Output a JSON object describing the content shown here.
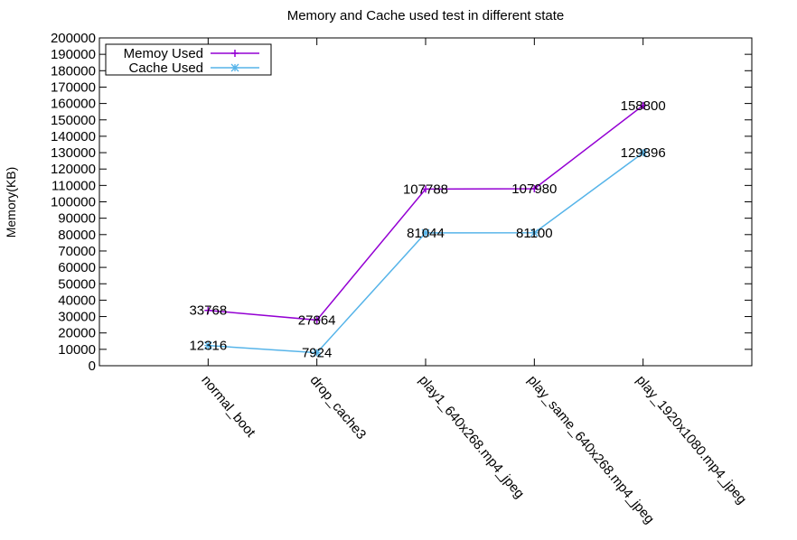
{
  "chart_data": {
    "type": "line",
    "title": "Memory and Cache used test in different state",
    "xlabel": "",
    "ylabel": "Memory(KB)",
    "ylim": [
      0,
      200000
    ],
    "yticks": [
      "0",
      "10000",
      "20000",
      "30000",
      "40000",
      "50000",
      "60000",
      "70000",
      "80000",
      "90000",
      "100000",
      "110000",
      "120000",
      "130000",
      "140000",
      "150000",
      "160000",
      "170000",
      "180000",
      "190000",
      "200000"
    ],
    "categories": [
      "normal_boot",
      "drop_cache3",
      "play1_640x268.mp4_jpeg",
      "play_same_640x268.mp4_jpeg",
      "play_1920x1080.mp4_jpeg"
    ],
    "grid": false,
    "legend_position": "top-left",
    "series": [
      {
        "name": "Memoy Used",
        "values": [
          33768,
          27864,
          107788,
          107980,
          158800
        ],
        "labels": [
          "33768",
          "27864",
          "107788",
          "107980",
          "158800"
        ],
        "color": "#9400d3",
        "marker": "plus"
      },
      {
        "name": "Cache Used",
        "values": [
          12316,
          7924,
          81044,
          81100,
          129896
        ],
        "labels": [
          "12316",
          "7924",
          "81044",
          "81100",
          "129896"
        ],
        "color": "#56b4e9",
        "marker": "star"
      }
    ]
  }
}
